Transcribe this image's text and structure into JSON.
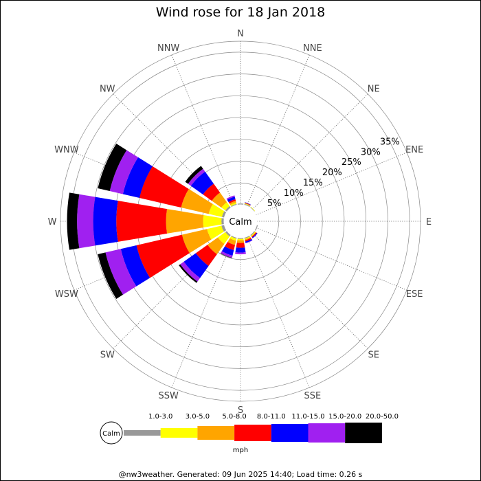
{
  "chart_data": {
    "type": "windrose",
    "title": "Wind rose for 18 Jan 2018",
    "directions": [
      "N",
      "NNE",
      "NE",
      "ENE",
      "E",
      "ESE",
      "SE",
      "SSE",
      "S",
      "SSW",
      "SW",
      "WSW",
      "W",
      "WNW",
      "NW",
      "NNW"
    ],
    "ring_labels": [
      "5%",
      "10%",
      "15%",
      "20%",
      "25%",
      "30%",
      "35%"
    ],
    "rmax_percent": 37.5,
    "calm_label": "Calm",
    "speed_bins": [
      {
        "label": "1.0-3.0",
        "color": "#999999"
      },
      {
        "label": "3.0-5.0",
        "color": "#ffff00"
      },
      {
        "label": "5.0-8.0",
        "color": "#ffa500"
      },
      {
        "label": "8.0-11.0",
        "color": "#ff0000"
      },
      {
        "label": "11.0-15.0",
        "color": "#0000ff"
      },
      {
        "label": "15.0-20.0",
        "color": "#a020f0"
      },
      {
        "label": "20.0-50.0",
        "color": "#000000"
      }
    ],
    "unit": "mph",
    "series_cumulative_percent": {
      "N": [
        0.3,
        0.3,
        0.3,
        0.3,
        0.3,
        0.3,
        0.3
      ],
      "NNE": [
        0.3,
        0.4,
        0.5,
        0.6,
        0.7,
        0.7,
        0.7
      ],
      "NE": [
        0.2,
        0.3,
        0.3,
        0.3,
        0.3,
        0.3,
        0.3
      ],
      "ENE": [
        0,
        0,
        0,
        0,
        0,
        0,
        0
      ],
      "E": [
        0,
        0,
        0,
        0,
        0,
        0,
        0
      ],
      "ESE": [
        0.3,
        0.3,
        0.3,
        0.3,
        0.3,
        0.3,
        0.3
      ],
      "SE": [
        0.3,
        0.5,
        0.6,
        0.8,
        1.0,
        1.0,
        1.0
      ],
      "SSE": [
        0.3,
        0.5,
        0.7,
        1.0,
        1.3,
        1.4,
        1.4
      ],
      "S": [
        0.3,
        0.6,
        1.2,
        2.3,
        3.4,
        3.8,
        3.8
      ],
      "SSW": [
        0.3,
        0.8,
        1.8,
        3.0,
        4.3,
        4.8,
        4.9
      ],
      "SW": [
        0.5,
        2.6,
        5.5,
        8.8,
        12.2,
        13.2,
        13.6
      ],
      "WSW": [
        0.7,
        4.1,
        10.0,
        20.7,
        24.4,
        28.0,
        29.8
      ],
      "W": [
        0.6,
        4.8,
        13.3,
        24.7,
        30.0,
        33.7,
        36.0
      ],
      "WNW": [
        0.6,
        3.7,
        10.2,
        20.0,
        23.9,
        27.0,
        29.8
      ],
      "NW": [
        0.5,
        1.6,
        4.3,
        6.8,
        10.2,
        11.0,
        11.8
      ],
      "NNW": [
        0.3,
        0.6,
        1.0,
        1.4,
        2.0,
        2.3,
        2.3
      ]
    }
  },
  "footer": "@nw3weather. Generated: 09 Jun 2025 14:40; Load time: 0.26 s"
}
